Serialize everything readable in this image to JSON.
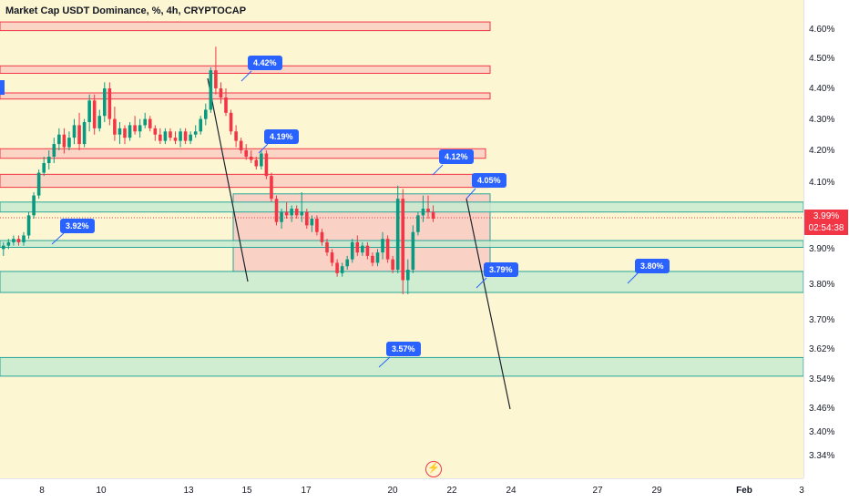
{
  "header": {
    "title": "Market Cap USDT Dominance, %, 4h, CRYPTOCAP",
    "unit": "%"
  },
  "price_axis": {
    "ticks": [
      "4.60%",
      "4.50%",
      "4.40%",
      "4.30%",
      "4.20%",
      "4.10%",
      "3.90%",
      "3.80%",
      "3.70%",
      "3.62%",
      "3.54%",
      "3.46%",
      "3.40%",
      "3.34%"
    ],
    "current_price": "3.99%",
    "countdown": "02:54:38"
  },
  "time_axis": {
    "ticks": [
      "8",
      "10",
      "13",
      "15",
      "17",
      "20",
      "22",
      "24",
      "27",
      "29",
      "Feb",
      "3"
    ]
  },
  "callouts": [
    "4.42%",
    "4.19%",
    "4.12%",
    "4.05%",
    "3.92%",
    "3.79%",
    "3.80%",
    "3.57%"
  ],
  "colors": {
    "background": "#fdf6d3",
    "up": "#089981",
    "down": "#f23645",
    "callout": "#2962ff",
    "red_zone_fill": "#f8c9c2",
    "green_zone_fill": "#c9ebd0",
    "teal_border": "#26a69a"
  },
  "icons": {
    "flash": "lightning-icon"
  },
  "chart_data": {
    "type": "candlestick",
    "title": "Market Cap USDT Dominance, %, 4h, CRYPTOCAP",
    "xlabel": "",
    "ylabel": "",
    "ylim": [
      3.3,
      4.66
    ],
    "y_scale": "log",
    "grid": false,
    "candles": [
      [
        3.9,
        3.92,
        3.88,
        3.91
      ],
      [
        3.91,
        3.93,
        3.9,
        3.92
      ],
      [
        3.92,
        3.94,
        3.91,
        3.93
      ],
      [
        3.93,
        3.94,
        3.91,
        3.92
      ],
      [
        3.92,
        3.95,
        3.91,
        3.94
      ],
      [
        3.94,
        4.01,
        3.93,
        4.0
      ],
      [
        4.0,
        4.07,
        3.99,
        4.06
      ],
      [
        4.06,
        4.14,
        4.05,
        4.13
      ],
      [
        4.13,
        4.18,
        4.12,
        4.16
      ],
      [
        4.16,
        4.2,
        4.14,
        4.18
      ],
      [
        4.18,
        4.24,
        4.16,
        4.22
      ],
      [
        4.22,
        4.27,
        4.2,
        4.25
      ],
      [
        4.25,
        4.27,
        4.19,
        4.21
      ],
      [
        4.21,
        4.26,
        4.2,
        4.24
      ],
      [
        4.24,
        4.3,
        4.22,
        4.28
      ],
      [
        4.28,
        4.32,
        4.2,
        4.22
      ],
      [
        4.22,
        4.3,
        4.21,
        4.29
      ],
      [
        4.29,
        4.38,
        4.26,
        4.36
      ],
      [
        4.36,
        4.38,
        4.25,
        4.27
      ],
      [
        4.27,
        4.33,
        4.26,
        4.31
      ],
      [
        4.31,
        4.42,
        4.29,
        4.4
      ],
      [
        4.4,
        4.42,
        4.28,
        4.3
      ],
      [
        4.3,
        4.34,
        4.23,
        4.25
      ],
      [
        4.25,
        4.29,
        4.22,
        4.27
      ],
      [
        4.27,
        4.28,
        4.22,
        4.24
      ],
      [
        4.24,
        4.29,
        4.23,
        4.28
      ],
      [
        4.28,
        4.31,
        4.25,
        4.26
      ],
      [
        4.26,
        4.3,
        4.24,
        4.28
      ],
      [
        4.28,
        4.32,
        4.27,
        4.3
      ],
      [
        4.3,
        4.31,
        4.26,
        4.27
      ],
      [
        4.27,
        4.28,
        4.23,
        4.25
      ],
      [
        4.25,
        4.27,
        4.22,
        4.23
      ],
      [
        4.23,
        4.27,
        4.22,
        4.26
      ],
      [
        4.26,
        4.27,
        4.23,
        4.24
      ],
      [
        4.24,
        4.26,
        4.22,
        4.23
      ],
      [
        4.23,
        4.27,
        4.21,
        4.26
      ],
      [
        4.26,
        4.27,
        4.22,
        4.23
      ],
      [
        4.23,
        4.26,
        4.22,
        4.25
      ],
      [
        4.25,
        4.28,
        4.24,
        4.26
      ],
      [
        4.26,
        4.31,
        4.25,
        4.3
      ],
      [
        4.3,
        4.35,
        4.28,
        4.33
      ],
      [
        4.33,
        4.47,
        4.32,
        4.46
      ],
      [
        4.46,
        4.54,
        4.38,
        4.4
      ],
      [
        4.4,
        4.42,
        4.35,
        4.37
      ],
      [
        4.37,
        4.4,
        4.31,
        4.32
      ],
      [
        4.32,
        4.33,
        4.25,
        4.26
      ],
      [
        4.26,
        4.28,
        4.21,
        4.23
      ],
      [
        4.23,
        4.24,
        4.19,
        4.2
      ],
      [
        4.2,
        4.22,
        4.17,
        4.18
      ],
      [
        4.18,
        4.2,
        4.16,
        4.17
      ],
      [
        4.17,
        4.18,
        4.14,
        4.15
      ],
      [
        4.15,
        4.2,
        4.14,
        4.19
      ],
      [
        4.19,
        4.2,
        4.11,
        4.12
      ],
      [
        4.12,
        4.13,
        4.04,
        4.05
      ],
      [
        4.05,
        4.06,
        3.97,
        3.98
      ],
      [
        3.98,
        4.02,
        3.96,
        4.01
      ],
      [
        4.01,
        4.04,
        3.99,
        4.0
      ],
      [
        4.0,
        4.03,
        3.98,
        4.02
      ],
      [
        4.02,
        4.03,
        3.99,
        4.0
      ],
      [
        4.0,
        4.07,
        3.98,
        4.01
      ],
      [
        4.01,
        4.02,
        3.96,
        3.97
      ],
      [
        3.97,
        4.0,
        3.95,
        3.99
      ],
      [
        3.99,
        4.0,
        3.94,
        3.95
      ],
      [
        3.95,
        3.96,
        3.91,
        3.92
      ],
      [
        3.92,
        3.93,
        3.88,
        3.89
      ],
      [
        3.89,
        3.9,
        3.85,
        3.86
      ],
      [
        3.86,
        3.87,
        3.82,
        3.83
      ],
      [
        3.83,
        3.86,
        3.82,
        3.85
      ],
      [
        3.85,
        3.88,
        3.84,
        3.87
      ],
      [
        3.87,
        3.93,
        3.86,
        3.92
      ],
      [
        3.92,
        3.94,
        3.88,
        3.89
      ],
      [
        3.89,
        3.92,
        3.88,
        3.91
      ],
      [
        3.91,
        3.92,
        3.87,
        3.88
      ],
      [
        3.88,
        3.89,
        3.85,
        3.86
      ],
      [
        3.86,
        3.9,
        3.85,
        3.89
      ],
      [
        3.89,
        3.95,
        3.87,
        3.93
      ],
      [
        3.93,
        3.94,
        3.86,
        3.87
      ],
      [
        3.87,
        3.88,
        3.83,
        3.84
      ],
      [
        3.84,
        4.09,
        3.83,
        4.05
      ],
      [
        4.05,
        4.08,
        3.77,
        3.81
      ],
      [
        3.81,
        3.87,
        3.77,
        3.84
      ],
      [
        3.84,
        3.97,
        3.83,
        3.95
      ],
      [
        3.95,
        4.01,
        3.94,
        4.0
      ],
      [
        4.0,
        4.06,
        3.98,
        4.02
      ],
      [
        4.02,
        4.06,
        3.99,
        4.01
      ],
      [
        4.01,
        4.03,
        3.98,
        3.99
      ]
    ],
    "annotations": [
      "4.42%",
      "4.19%",
      "4.12%",
      "4.05%",
      "3.92%",
      "3.79%",
      "3.80%",
      "3.57%"
    ],
    "zones": [
      {
        "kind": "resistance",
        "low": 4.595,
        "high": 4.625
      },
      {
        "kind": "resistance",
        "low": 4.45,
        "high": 4.475
      },
      {
        "kind": "resistance",
        "low": 4.365,
        "high": 4.385
      },
      {
        "kind": "resistance",
        "low": 4.175,
        "high": 4.205
      },
      {
        "kind": "resistance",
        "low": 4.085,
        "high": 4.125
      },
      {
        "kind": "range",
        "low": 3.835,
        "high": 4.065
      },
      {
        "kind": "support",
        "low": 4.01,
        "high": 4.04
      },
      {
        "kind": "support",
        "low": 3.905,
        "high": 3.925
      },
      {
        "kind": "support",
        "low": 3.775,
        "high": 3.835
      },
      {
        "kind": "support",
        "low": 3.545,
        "high": 3.595
      }
    ],
    "current_price": 3.99
  }
}
